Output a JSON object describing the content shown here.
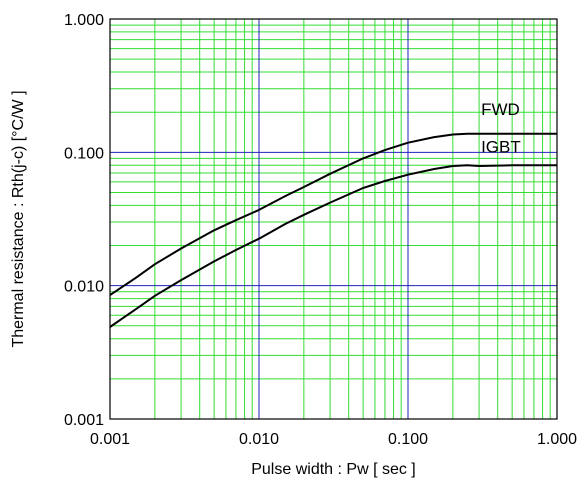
{
  "chart_data": {
    "type": "line",
    "xlabel": "Pulse width : Pw [ sec ]",
    "ylabel": "Thermal resistance : Rth(j-c) [°C/W ]",
    "x_scale": "log",
    "y_scale": "log",
    "xlim": [
      0.001,
      1.0
    ],
    "ylim": [
      0.001,
      1.0
    ],
    "x_ticks": [
      "0.001",
      "0.010",
      "0.100",
      "1.000"
    ],
    "y_ticks": [
      "0.001",
      "0.010",
      "0.100",
      "1.000"
    ],
    "grid": true,
    "colors": {
      "minor_grid": "#33dd33",
      "major_grid": "#2222bb",
      "series": "#000000",
      "frame": "#000000"
    },
    "series": [
      {
        "name": "FWD",
        "x": [
          0.001,
          0.0015,
          0.002,
          0.003,
          0.005,
          0.007,
          0.01,
          0.015,
          0.02,
          0.03,
          0.05,
          0.07,
          0.1,
          0.15,
          0.2,
          0.25,
          0.3,
          0.5,
          0.7,
          1.0
        ],
        "y": [
          0.0085,
          0.0115,
          0.0145,
          0.019,
          0.026,
          0.031,
          0.037,
          0.047,
          0.055,
          0.069,
          0.09,
          0.104,
          0.118,
          0.13,
          0.136,
          0.138,
          0.138,
          0.138,
          0.138,
          0.138
        ]
      },
      {
        "name": "IGBT",
        "x": [
          0.001,
          0.0015,
          0.002,
          0.003,
          0.005,
          0.007,
          0.01,
          0.015,
          0.02,
          0.03,
          0.05,
          0.07,
          0.1,
          0.15,
          0.2,
          0.25,
          0.3,
          0.5,
          0.7,
          1.0
        ],
        "y": [
          0.0049,
          0.0067,
          0.0084,
          0.011,
          0.0152,
          0.0185,
          0.0225,
          0.029,
          0.034,
          0.042,
          0.054,
          0.061,
          0.068,
          0.075,
          0.079,
          0.08,
          0.079,
          0.08,
          0.08,
          0.08
        ]
      }
    ]
  }
}
